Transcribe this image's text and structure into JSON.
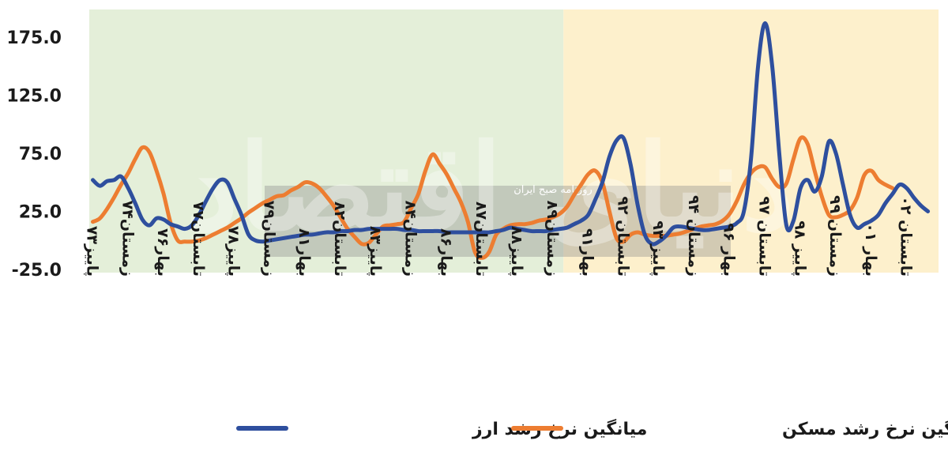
{
  "chart_data": {
    "type": "line",
    "ylim": [
      -25,
      200
    ],
    "yticks": [
      "175.0",
      "125.0",
      "75.0",
      "25.0",
      "-25.0"
    ],
    "ytick_values": [
      175,
      125,
      75,
      25,
      -25
    ],
    "x_count": 120,
    "xtick_labels": [
      "پاییز۷۳",
      "زمستان۷۴",
      "بهار۷۶",
      "تابستان۷۷",
      "پاییز۷۸",
      "زمستان۷۹",
      "بهار۸۱",
      "تابستان۸۲",
      "پاییز۸۳",
      "زمستان۸۴",
      "بهار۸۶",
      "تابستان۸۷",
      "پاییز۸۸",
      "زمستان۸۹",
      "بهار۹۱",
      "تابستان ۹۲",
      "پاییز ۹۳",
      "زمستان ۹۴",
      "بهار ۹۶",
      "تابستان ۹۷",
      "پاییز ۹۸",
      "زمستان ۹۹",
      "بهار ۰۱",
      "تابستان ۰۲"
    ],
    "xtick_positions": [
      0,
      5,
      10,
      15,
      20,
      25,
      30,
      35,
      40,
      45,
      50,
      55,
      60,
      65,
      70,
      75,
      80,
      85,
      90,
      95,
      100,
      105,
      110,
      115
    ],
    "shaded_regions": [
      {
        "from": 0,
        "to": 67,
        "color": "#e4efd9"
      },
      {
        "from": 67,
        "to": 120,
        "color": "#fdf0cc"
      }
    ],
    "series": [
      {
        "name": "میانگین نرخ رشد ارز",
        "color": "#2e4f9e",
        "points": [
          [
            0,
            52
          ],
          [
            1,
            47
          ],
          [
            2,
            51
          ],
          [
            3,
            52
          ],
          [
            4,
            55
          ],
          [
            5,
            45
          ],
          [
            6,
            32
          ],
          [
            7,
            18
          ],
          [
            8,
            13
          ],
          [
            9,
            19
          ],
          [
            10,
            18
          ],
          [
            11,
            14
          ],
          [
            12,
            12
          ],
          [
            13,
            10
          ],
          [
            14,
            13
          ],
          [
            15,
            22
          ],
          [
            16,
            34
          ],
          [
            17,
            45
          ],
          [
            18,
            52
          ],
          [
            19,
            50
          ],
          [
            20,
            36
          ],
          [
            21,
            22
          ],
          [
            22,
            5
          ],
          [
            23,
            0
          ],
          [
            24,
            -1
          ],
          [
            25,
            0
          ],
          [
            26,
            1
          ],
          [
            27,
            2
          ],
          [
            28,
            3
          ],
          [
            29,
            4
          ],
          [
            30,
            5
          ],
          [
            31,
            5
          ],
          [
            32,
            6
          ],
          [
            33,
            7
          ],
          [
            34,
            7
          ],
          [
            35,
            8
          ],
          [
            36,
            8
          ],
          [
            37,
            9
          ],
          [
            38,
            9
          ],
          [
            39,
            10
          ],
          [
            40,
            10
          ],
          [
            41,
            10
          ],
          [
            42,
            10
          ],
          [
            43,
            10
          ],
          [
            44,
            9
          ],
          [
            45,
            9
          ],
          [
            46,
            8
          ],
          [
            47,
            8
          ],
          [
            48,
            8
          ],
          [
            49,
            8
          ],
          [
            50,
            7
          ],
          [
            51,
            7
          ],
          [
            52,
            7
          ],
          [
            53,
            7
          ],
          [
            54,
            7
          ],
          [
            55,
            7
          ],
          [
            56,
            7
          ],
          [
            57,
            8
          ],
          [
            58,
            9
          ],
          [
            59,
            11
          ],
          [
            60,
            10
          ],
          [
            61,
            9
          ],
          [
            62,
            8
          ],
          [
            63,
            8
          ],
          [
            64,
            8
          ],
          [
            65,
            9
          ],
          [
            66,
            10
          ],
          [
            67,
            11
          ],
          [
            68,
            14
          ],
          [
            69,
            17
          ],
          [
            70,
            22
          ],
          [
            71,
            35
          ],
          [
            72,
            50
          ],
          [
            73,
            72
          ],
          [
            74,
            86
          ],
          [
            75,
            88
          ],
          [
            76,
            65
          ],
          [
            77,
            30
          ],
          [
            78,
            5
          ],
          [
            79,
            -3
          ],
          [
            80,
            -1
          ],
          [
            81,
            4
          ],
          [
            82,
            11
          ],
          [
            83,
            12
          ],
          [
            84,
            11
          ],
          [
            85,
            10
          ],
          [
            86,
            9
          ],
          [
            87,
            9
          ],
          [
            88,
            10
          ],
          [
            89,
            11
          ],
          [
            90,
            12
          ],
          [
            91,
            15
          ],
          [
            92,
            25
          ],
          [
            93,
            70
          ],
          [
            94,
            150
          ],
          [
            95,
            187
          ],
          [
            96,
            150
          ],
          [
            97,
            75
          ],
          [
            98,
            13
          ],
          [
            99,
            17
          ],
          [
            100,
            45
          ],
          [
            101,
            52
          ],
          [
            102,
            42
          ],
          [
            103,
            55
          ],
          [
            104,
            85
          ],
          [
            105,
            75
          ],
          [
            106,
            48
          ],
          [
            107,
            22
          ],
          [
            108,
            11
          ],
          [
            109,
            14
          ],
          [
            110,
            17
          ],
          [
            111,
            22
          ],
          [
            112,
            32
          ],
          [
            113,
            40
          ],
          [
            114,
            48
          ],
          [
            115,
            45
          ],
          [
            116,
            37
          ],
          [
            117,
            30
          ],
          [
            118,
            25
          ]
        ]
      },
      {
        "name": "میانگین نرخ رشد مسکن",
        "color": "#ed7d31",
        "points": [
          [
            0,
            16
          ],
          [
            1,
            19
          ],
          [
            2,
            27
          ],
          [
            3,
            37
          ],
          [
            4,
            48
          ],
          [
            5,
            58
          ],
          [
            6,
            70
          ],
          [
            7,
            80
          ],
          [
            8,
            76
          ],
          [
            9,
            60
          ],
          [
            10,
            40
          ],
          [
            11,
            15
          ],
          [
            12,
            0
          ],
          [
            13,
            -1
          ],
          [
            14,
            -1
          ],
          [
            15,
            0
          ],
          [
            16,
            2
          ],
          [
            17,
            5
          ],
          [
            18,
            8
          ],
          [
            19,
            11
          ],
          [
            20,
            15
          ],
          [
            21,
            19
          ],
          [
            22,
            24
          ],
          [
            23,
            28
          ],
          [
            24,
            32
          ],
          [
            25,
            35
          ],
          [
            26,
            38
          ],
          [
            27,
            39
          ],
          [
            28,
            43
          ],
          [
            29,
            46
          ],
          [
            30,
            50
          ],
          [
            31,
            49
          ],
          [
            32,
            45
          ],
          [
            33,
            38
          ],
          [
            34,
            30
          ],
          [
            35,
            20
          ],
          [
            36,
            10
          ],
          [
            37,
            3
          ],
          [
            38,
            -3
          ],
          [
            39,
            -2
          ],
          [
            40,
            5
          ],
          [
            41,
            12
          ],
          [
            42,
            13
          ],
          [
            43,
            14
          ],
          [
            44,
            16
          ],
          [
            45,
            28
          ],
          [
            46,
            40
          ],
          [
            47,
            60
          ],
          [
            48,
            74
          ],
          [
            49,
            66
          ],
          [
            50,
            57
          ],
          [
            51,
            45
          ],
          [
            52,
            33
          ],
          [
            53,
            16
          ],
          [
            54,
            -10
          ],
          [
            55,
            -15
          ],
          [
            56,
            -10
          ],
          [
            57,
            5
          ],
          [
            58,
            10
          ],
          [
            59,
            13
          ],
          [
            60,
            14
          ],
          [
            61,
            14
          ],
          [
            62,
            15
          ],
          [
            63,
            17
          ],
          [
            64,
            18
          ],
          [
            65,
            20
          ],
          [
            66,
            23
          ],
          [
            67,
            29
          ],
          [
            68,
            39
          ],
          [
            69,
            48
          ],
          [
            70,
            57
          ],
          [
            71,
            60
          ],
          [
            72,
            50
          ],
          [
            73,
            25
          ],
          [
            74,
            2
          ],
          [
            75,
            -1
          ],
          [
            76,
            5
          ],
          [
            77,
            7
          ],
          [
            78,
            5
          ],
          [
            79,
            4
          ],
          [
            80,
            4
          ],
          [
            81,
            4
          ],
          [
            82,
            5
          ],
          [
            83,
            6
          ],
          [
            84,
            8
          ],
          [
            85,
            10
          ],
          [
            86,
            12
          ],
          [
            87,
            13
          ],
          [
            88,
            14
          ],
          [
            89,
            17
          ],
          [
            90,
            23
          ],
          [
            91,
            34
          ],
          [
            92,
            48
          ],
          [
            93,
            58
          ],
          [
            94,
            63
          ],
          [
            95,
            63
          ],
          [
            96,
            53
          ],
          [
            97,
            46
          ],
          [
            98,
            49
          ],
          [
            99,
            70
          ],
          [
            100,
            88
          ],
          [
            101,
            83
          ],
          [
            102,
            60
          ],
          [
            103,
            38
          ],
          [
            104,
            22
          ],
          [
            105,
            20
          ],
          [
            106,
            22
          ],
          [
            107,
            26
          ],
          [
            108,
            37
          ],
          [
            109,
            56
          ],
          [
            110,
            60
          ],
          [
            111,
            52
          ],
          [
            112,
            48
          ],
          [
            113,
            45
          ]
        ]
      }
    ]
  },
  "legend": {
    "fx_label": "میانگین نرخ رشد ارز",
    "fx_color": "#2e4f9e",
    "housing_label": "میانگین نرخ رشد مسکن",
    "housing_color": "#ed7d31"
  },
  "watermark": {
    "brand_small": "روزنامه صبح ایران",
    "brand_large": "دنیای اقتصاد"
  }
}
